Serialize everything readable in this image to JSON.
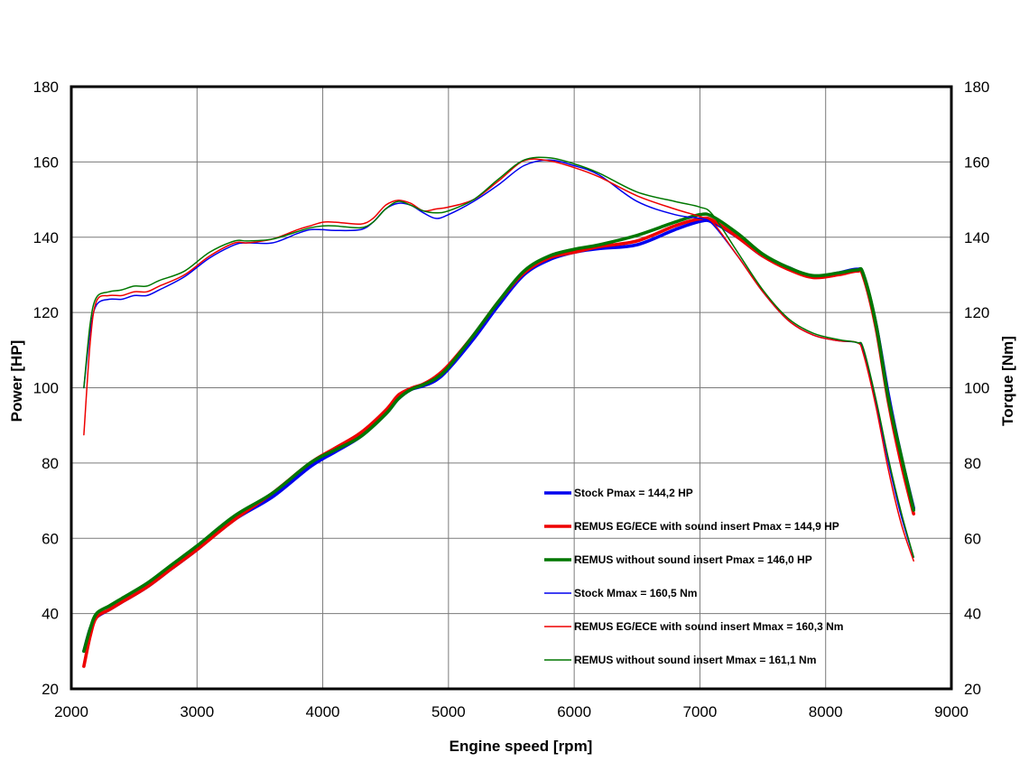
{
  "chart_data": {
    "type": "line",
    "title": "",
    "xlabel": "Engine speed [rpm]",
    "ylabel_left": "Power [HP]",
    "ylabel_right": "Torque [Nm]",
    "xlim": [
      2000,
      9000
    ],
    "ylim": [
      20,
      180
    ],
    "xticks": [
      2000,
      3000,
      4000,
      5000,
      6000,
      7000,
      8000,
      9000
    ],
    "yticks": [
      20,
      40,
      60,
      80,
      100,
      120,
      140,
      160,
      180
    ],
    "grid": true,
    "legend_position": "bottom-right",
    "series": [
      {
        "name": "Stock Pmax = 144,2 HP",
        "color": "#0000ee",
        "width": "thick",
        "x": [
          2100,
          2150,
          2200,
          2300,
          2400,
          2600,
          2800,
          3000,
          3300,
          3600,
          3900,
          4100,
          4300,
          4500,
          4600,
          4700,
          4800,
          4900,
          5000,
          5200,
          5400,
          5600,
          5800,
          6000,
          6200,
          6500,
          6800,
          7000,
          7100,
          7300,
          7500,
          7700,
          7900,
          8100,
          8250,
          8300,
          8400,
          8500,
          8600,
          8700
        ],
        "values": [
          30,
          36,
          39,
          41,
          43,
          47,
          52,
          57,
          65,
          71,
          79,
          83,
          87,
          93,
          97,
          99.5,
          100.5,
          102,
          105,
          113,
          122,
          130,
          134,
          136,
          137,
          138,
          142,
          144.2,
          144,
          140,
          135,
          132,
          129.5,
          130.5,
          131.5,
          130,
          117,
          98,
          82,
          68
        ]
      },
      {
        "name": "REMUS EG/ECE with sound insert Pmax =  144,9 HP",
        "color": "#ee0000",
        "width": "thick",
        "x": [
          2100,
          2150,
          2200,
          2300,
          2400,
          2600,
          2800,
          3000,
          3300,
          3600,
          3900,
          4100,
          4300,
          4500,
          4600,
          4700,
          4800,
          4900,
          5000,
          5200,
          5400,
          5600,
          5800,
          6000,
          6200,
          6500,
          6800,
          7000,
          7100,
          7300,
          7500,
          7700,
          7900,
          8100,
          8250,
          8300,
          8400,
          8500,
          8600,
          8700
        ],
        "values": [
          26,
          34,
          39,
          41,
          43,
          47,
          52,
          57,
          65,
          72,
          80,
          84,
          88,
          94,
          98,
          99.8,
          101,
          103,
          106,
          114,
          123,
          130.5,
          134.5,
          136,
          137.5,
          139,
          143,
          144.9,
          144.5,
          140,
          135,
          131.5,
          129.3,
          130,
          131,
          129.5,
          116,
          96,
          80,
          66.5
        ]
      },
      {
        "name": "REMUS without sound insert Pmax = 146,0 HP",
        "color": "#007700",
        "width": "thick",
        "x": [
          2100,
          2150,
          2200,
          2300,
          2400,
          2600,
          2800,
          3000,
          3300,
          3600,
          3900,
          4100,
          4300,
          4500,
          4600,
          4700,
          4800,
          4900,
          5000,
          5200,
          5400,
          5600,
          5800,
          6000,
          6200,
          6500,
          6800,
          7000,
          7100,
          7300,
          7500,
          7700,
          7900,
          8100,
          8250,
          8300,
          8400,
          8500,
          8600,
          8700
        ],
        "values": [
          30,
          36,
          40,
          42,
          44,
          48,
          53,
          58,
          66,
          72,
          80,
          83.5,
          87,
          93,
          97,
          99.5,
          100.8,
          102.5,
          105.5,
          114,
          123,
          131,
          135,
          136.8,
          138,
          140.5,
          144,
          146,
          145.5,
          141,
          135.5,
          132,
          129.8,
          130.5,
          131.3,
          130.2,
          117,
          97,
          82,
          67.5
        ]
      },
      {
        "name": "Stock Mmax = 160,5 Nm",
        "color": "#0000ee",
        "width": "thin",
        "x": [
          2100,
          2150,
          2200,
          2300,
          2400,
          2500,
          2600,
          2700,
          2900,
          3100,
          3300,
          3400,
          3600,
          3800,
          3900,
          4000,
          4100,
          4300,
          4400,
          4500,
          4600,
          4700,
          4800,
          4900,
          5000,
          5200,
          5400,
          5600,
          5800,
          6000,
          6200,
          6500,
          6800,
          7000,
          7100,
          7300,
          7500,
          7700,
          7900,
          8100,
          8250,
          8300,
          8400,
          8500,
          8600,
          8700
        ],
        "values": [
          100,
          115,
          122,
          123.5,
          123.5,
          124.5,
          124.5,
          126,
          129.5,
          134.5,
          138,
          138.5,
          138.5,
          141,
          142,
          142,
          141.8,
          142,
          144,
          147.5,
          149,
          148.5,
          146.5,
          145,
          146,
          149.5,
          154,
          159,
          160.5,
          159,
          156.5,
          149.5,
          146,
          145,
          143.5,
          135,
          125.5,
          118,
          114,
          112.5,
          112,
          110,
          96,
          80,
          66,
          55
        ]
      },
      {
        "name": "REMUS EG/ECE with sound insert Mmax = 160,3 Nm",
        "color": "#ee0000",
        "width": "thin",
        "x": [
          2100,
          2150,
          2200,
          2300,
          2400,
          2500,
          2600,
          2700,
          2900,
          3100,
          3300,
          3400,
          3600,
          3800,
          3900,
          4000,
          4100,
          4300,
          4400,
          4500,
          4600,
          4700,
          4800,
          4900,
          5000,
          5200,
          5400,
          5600,
          5800,
          6000,
          6200,
          6500,
          6800,
          7000,
          7100,
          7300,
          7500,
          7700,
          7900,
          8100,
          8250,
          8300,
          8400,
          8500,
          8600,
          8700
        ],
        "values": [
          87.5,
          112,
          123,
          124.5,
          124.5,
          125.5,
          125.5,
          127,
          130,
          135,
          138.5,
          138.5,
          139.5,
          142,
          143,
          144,
          144,
          143.5,
          145,
          148.5,
          149.8,
          149,
          147,
          147.5,
          148,
          150,
          155,
          160.3,
          160.3,
          158.5,
          156,
          151,
          147.5,
          145.5,
          144,
          135,
          125.5,
          118,
          114,
          112.5,
          112,
          109,
          95,
          78,
          64,
          54
        ]
      },
      {
        "name": "REMUS without sound insert Mmax = 161,1 Nm",
        "color": "#007700",
        "width": "thin",
        "x": [
          2100,
          2150,
          2200,
          2300,
          2400,
          2500,
          2600,
          2700,
          2900,
          3100,
          3300,
          3400,
          3600,
          3800,
          3900,
          4000,
          4100,
          4300,
          4400,
          4500,
          4600,
          4700,
          4800,
          4900,
          5000,
          5200,
          5400,
          5600,
          5800,
          6000,
          6200,
          6500,
          6800,
          7000,
          7100,
          7300,
          7500,
          7700,
          7900,
          8100,
          8250,
          8300,
          8400,
          8500,
          8600,
          8700
        ],
        "values": [
          100,
          117,
          124,
          125.5,
          126,
          127,
          127,
          128.5,
          131,
          136,
          139,
          139,
          139.5,
          141.5,
          142.5,
          143,
          143,
          142.5,
          144,
          147.5,
          149.5,
          148.5,
          147,
          146.5,
          147,
          150,
          155.5,
          160.5,
          161.1,
          159.5,
          157,
          152,
          149.5,
          148,
          146,
          136,
          126,
          118.5,
          114.5,
          112.8,
          112,
          110.5,
          97,
          81,
          67,
          55
        ]
      }
    ]
  }
}
